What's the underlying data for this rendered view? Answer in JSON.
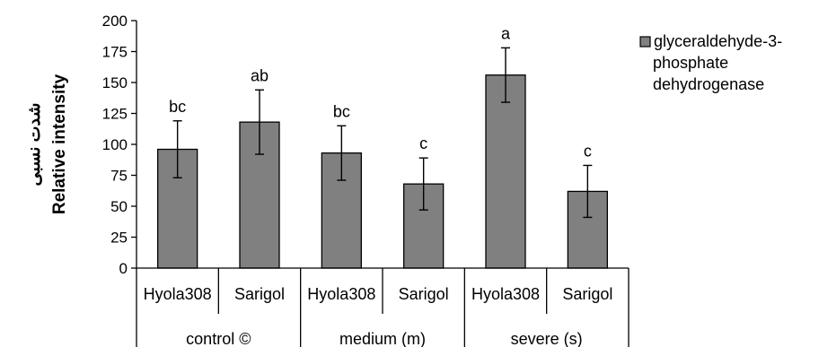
{
  "chart_data": {
    "type": "bar",
    "categories": [
      "Hyola308",
      "Sarigol",
      "Hyola308",
      "Sarigol",
      "Hyola308",
      "Sarigol"
    ],
    "groups": [
      {
        "label": "control ©",
        "span": 2
      },
      {
        "label": "medium (m)",
        "span": 2
      },
      {
        "label": "severe (s)",
        "span": 2
      }
    ],
    "series": [
      {
        "name": "glyceraldehyde-3-phosphate dehydrogenase",
        "legend_lines": [
          "glyceraldehyde-3-",
          "phosphate",
          "dehydrogenase"
        ],
        "values": [
          96,
          118,
          93,
          68,
          156,
          62
        ],
        "errors": [
          23,
          26,
          22,
          21,
          22,
          21
        ],
        "significance": [
          "bc",
          "ab",
          "bc",
          "c",
          "a",
          "c"
        ],
        "color": "#808080"
      }
    ],
    "ylabel_lines": [
      "شدت نسبی",
      "Relative intensity"
    ],
    "ylim": [
      0,
      200
    ],
    "yticks": [
      0,
      25,
      50,
      75,
      100,
      125,
      150,
      175,
      200
    ],
    "grid": false,
    "legend": "right"
  }
}
